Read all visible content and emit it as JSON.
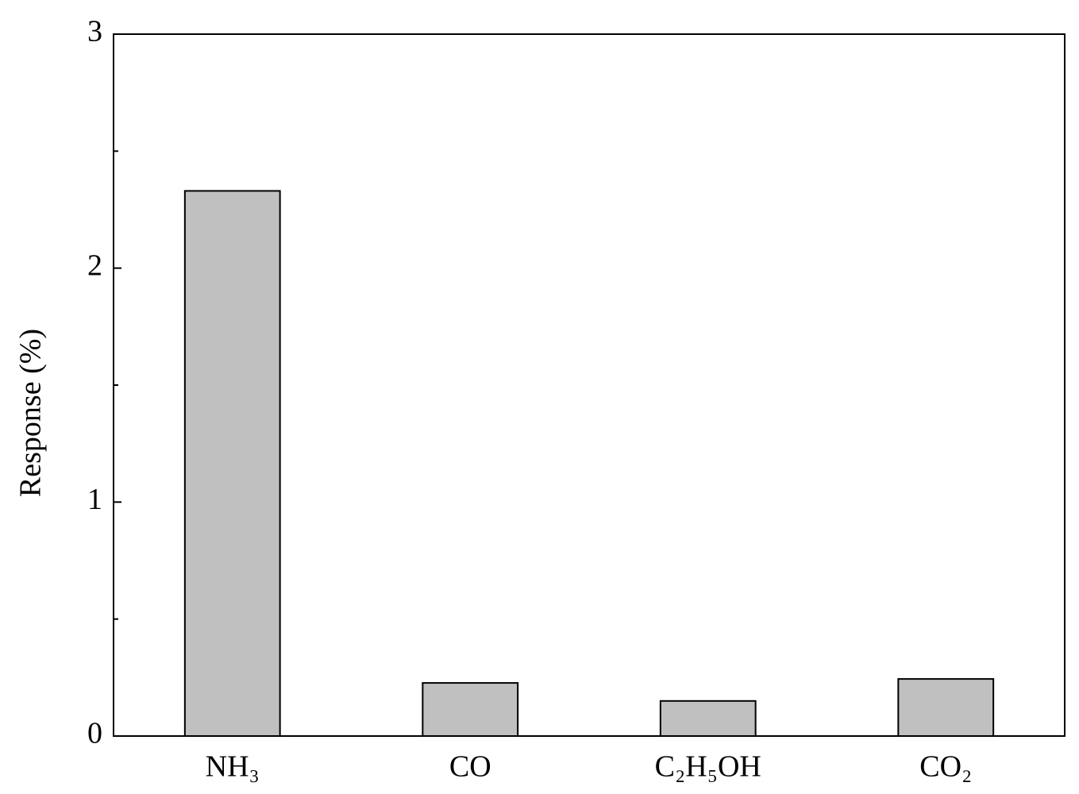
{
  "chart_data": {
    "type": "bar",
    "y_label": "Response (%)",
    "categories": [
      "NH₃",
      "CO",
      "C₂H₅OH",
      "CO₂"
    ],
    "values": [
      2.33,
      0.227,
      0.15,
      0.244
    ],
    "color": "#c0c0c0",
    "ylim": [
      0,
      3
    ],
    "yticks": [
      0,
      1,
      2,
      3
    ],
    "minor_yticks": [
      0.5,
      1.5,
      2.5
    ],
    "grid": false
  }
}
